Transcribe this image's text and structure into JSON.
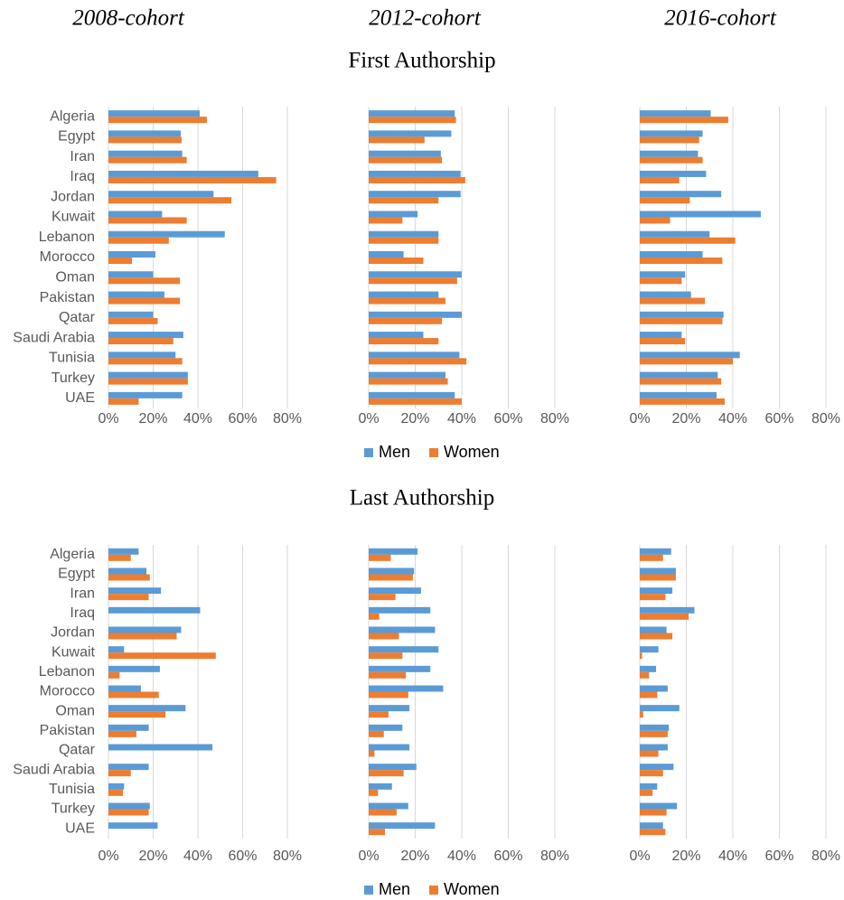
{
  "column_titles": [
    "2008-cohort",
    "2012-cohort",
    "2016-cohort"
  ],
  "chart_data": [
    {
      "type": "bar",
      "orientation": "horizontal",
      "title": "First Authorship",
      "categories": [
        "Algeria",
        "Egypt",
        "Iran",
        "Iraq",
        "Jordan",
        "Kuwait",
        "Lebanon",
        "Morocco",
        "Oman",
        "Pakistan",
        "Qatar",
        "Saudi Arabia",
        "Tunisia",
        "Turkey",
        "UAE"
      ],
      "xlim": [
        0,
        80
      ],
      "xticks": [
        {
          "value": 0,
          "label": "0%"
        },
        {
          "value": 20,
          "label": "20%"
        },
        {
          "value": 40,
          "label": "40%"
        },
        {
          "value": 60,
          "label": "60%"
        },
        {
          "value": 80,
          "label": "80%"
        }
      ],
      "grid": true,
      "series": [
        {
          "name": "Men",
          "color": "#5b9bd5",
          "values": [
            [
              40.8,
              32.3,
              33,
              67,
              47,
              24,
              52,
              21,
              20,
              25,
              20,
              33.5,
              30,
              35.5,
              33
            ],
            [
              37,
              35.5,
              31,
              39.5,
              39.5,
              21,
              30,
              15,
              40,
              30,
              40,
              23.5,
              39,
              33,
              37
            ],
            [
              30.5,
              27,
              25,
              28.5,
              35,
              52,
              30,
              27,
              19.5,
              22,
              36,
              18,
              43,
              33.5,
              33
            ]
          ]
        },
        {
          "name": "Women",
          "color": "#ed7d31",
          "values": [
            [
              44,
              32.7,
              35,
              75,
              55,
              35,
              27,
              10.5,
              32,
              32,
              22,
              29,
              33,
              35.5,
              13.5
            ],
            [
              37.5,
              24,
              31.5,
              41.5,
              30,
              14.5,
              30,
              23.5,
              38,
              33,
              31.5,
              30,
              42,
              34,
              40
            ],
            [
              38,
              25.5,
              27,
              17,
              21.5,
              13,
              41,
              35.5,
              18,
              28,
              35.5,
              19.5,
              40,
              35,
              36.5
            ]
          ]
        }
      ]
    },
    {
      "type": "bar",
      "orientation": "horizontal",
      "title": "Last Authorship",
      "categories": [
        "Algeria",
        "Egypt",
        "Iran",
        "Iraq",
        "Jordan",
        "Kuwait",
        "Lebanon",
        "Morocco",
        "Oman",
        "Pakistan",
        "Qatar",
        "Saudi Arabia",
        "Tunisia",
        "Turkey",
        "UAE"
      ],
      "xlim": [
        0,
        80
      ],
      "xticks": [
        {
          "value": 0,
          "label": "0%"
        },
        {
          "value": 20,
          "label": "20%"
        },
        {
          "value": 40,
          "label": "40%"
        },
        {
          "value": 60,
          "label": "60%"
        },
        {
          "value": 80,
          "label": "80%"
        }
      ],
      "grid": true,
      "series": [
        {
          "name": "Men",
          "color": "#5b9bd5",
          "values": [
            [
              13.5,
              17,
              23.5,
              41,
              32.5,
              7,
              23,
              14.5,
              34.5,
              18,
              46.5,
              18,
              7,
              18.5,
              22
            ],
            [
              21,
              19.5,
              22.5,
              26.5,
              28.5,
              30,
              26.5,
              32,
              17.5,
              14.5,
              17.5,
              20.5,
              10,
              17,
              28.5
            ],
            [
              13.5,
              15.5,
              14,
              23.5,
              11.5,
              8,
              7,
              12,
              17,
              12.5,
              12,
              14.5,
              7.5,
              16,
              10
            ]
          ]
        },
        {
          "name": "Women",
          "color": "#ed7d31",
          "values": [
            [
              10,
              18.5,
              18,
              0,
              30.5,
              48,
              5,
              22.5,
              25.5,
              12.5,
              0,
              10,
              6.5,
              18,
              0
            ],
            [
              9.5,
              19,
              11.5,
              4.5,
              13,
              14.5,
              16,
              17,
              8.5,
              6.5,
              2.5,
              15,
              4,
              12,
              7
            ],
            [
              10,
              15.5,
              11,
              21,
              14,
              1,
              4,
              7.5,
              1.5,
              12,
              8,
              10,
              5.5,
              11.5,
              11
            ]
          ]
        }
      ]
    }
  ]
}
